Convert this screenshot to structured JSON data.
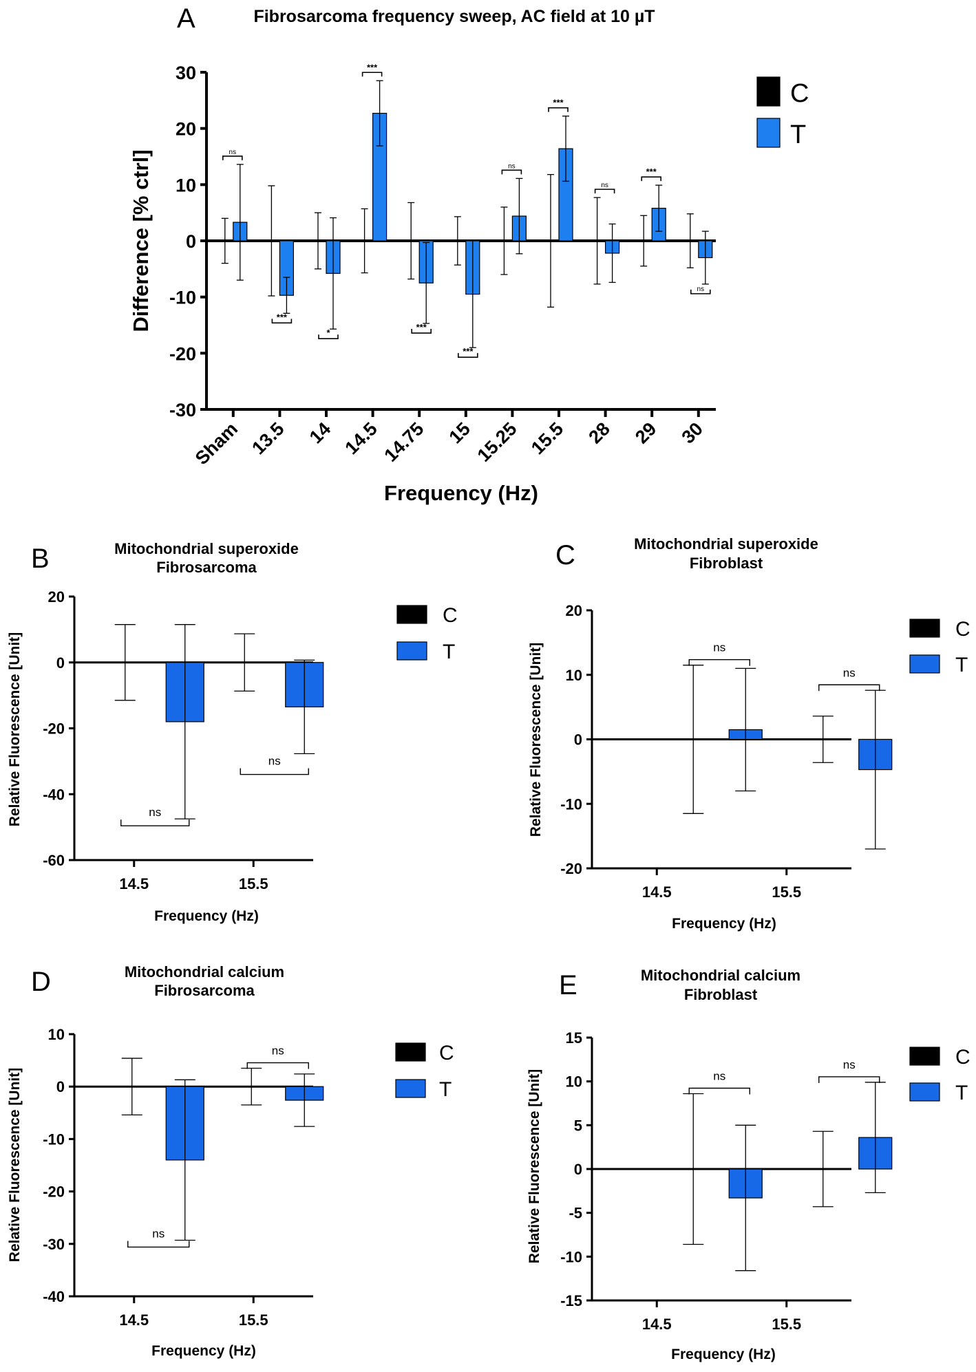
{
  "colors": {
    "control": "#000000",
    "treated": "#1769e8",
    "treated_A": "#1e7ff0",
    "axis": "#000000"
  },
  "chart_data": [
    {
      "panel": "A",
      "type": "bar",
      "title": "Fibrosarcoma frequency sweep, AC field at 10 µT",
      "xlabel": "Frequency (Hz)",
      "ylabel": "Difference [% ctrl]",
      "ylim": [
        -30,
        30
      ],
      "yticks": [
        30,
        20,
        10,
        0,
        -10,
        -20,
        -30
      ],
      "categories": [
        "Sham",
        "13.5",
        "14",
        "14.5",
        "14.75",
        "15",
        "15.25",
        "15.5",
        "28",
        "29",
        "30"
      ],
      "legend": [
        "C",
        "T"
      ],
      "series": [
        {
          "name": "C",
          "values": [
            0,
            0,
            0,
            0,
            0,
            0,
            0,
            0,
            0,
            0,
            0
          ],
          "errors": [
            4,
            9.8,
            5,
            5.7,
            6.8,
            4.3,
            6,
            11.8,
            7.7,
            4.5,
            4.8
          ]
        },
        {
          "name": "T",
          "values": [
            3.3,
            -9.7,
            -5.8,
            22.7,
            -7.5,
            -9.5,
            4.4,
            16.4,
            -2.2,
            5.8,
            -3
          ],
          "errors": [
            10.3,
            3.2,
            9.9,
            5.8,
            7.2,
            9.5,
            6.7,
            5.8,
            5.2,
            4.1,
            4.7
          ]
        }
      ],
      "significance": [
        "ns",
        "***",
        "*",
        "***",
        "***",
        "***",
        "ns",
        "***",
        "ns",
        "***",
        "ns"
      ]
    },
    {
      "panel": "B",
      "type": "bar",
      "title": [
        "Mitochondrial superoxide",
        "Fibrosarcoma"
      ],
      "xlabel": "Frequency (Hz)",
      "ylabel": "Relative Fluorescence [Unit]",
      "ylim": [
        -60,
        20
      ],
      "yticks": [
        20,
        0,
        -20,
        -40,
        -60
      ],
      "categories": [
        "14.5",
        "15.5"
      ],
      "legend": [
        "C",
        "T"
      ],
      "series": [
        {
          "name": "C",
          "values": [
            0,
            0
          ],
          "errors": [
            11.5,
            8.7
          ]
        },
        {
          "name": "T",
          "values": [
            -18,
            -13.5
          ],
          "errors": [
            29.5,
            14.2
          ]
        }
      ],
      "significance": [
        "ns",
        "ns"
      ]
    },
    {
      "panel": "C",
      "type": "bar",
      "title": [
        "Mitochondrial superoxide",
        "Fibroblast"
      ],
      "xlabel": "Frequency (Hz)",
      "ylabel": "Relative Fluorescence [Unit]",
      "ylim": [
        -20,
        20
      ],
      "yticks": [
        20,
        10,
        0,
        -10,
        -20
      ],
      "categories": [
        "14.5",
        "15.5"
      ],
      "legend": [
        "C",
        "T"
      ],
      "series": [
        {
          "name": "C",
          "values": [
            0,
            0
          ],
          "errors": [
            11.5,
            3.6
          ]
        },
        {
          "name": "T",
          "values": [
            1.5,
            -4.7
          ],
          "errors": [
            9.5,
            12.3
          ]
        }
      ],
      "significance": [
        "ns",
        "ns"
      ]
    },
    {
      "panel": "D",
      "type": "bar",
      "title": [
        "Mitochondrial calcium",
        "Fibrosarcoma"
      ],
      "xlabel": "Frequency (Hz)",
      "ylabel": "Relative Fluorescence [Unit]",
      "ylim": [
        -40,
        10
      ],
      "yticks": [
        10,
        0,
        -10,
        -20,
        -30,
        -40
      ],
      "categories": [
        "14.5",
        "15.5"
      ],
      "legend": [
        "C",
        "T"
      ],
      "series": [
        {
          "name": "C",
          "values": [
            0,
            0
          ],
          "errors": [
            5.4,
            3.5
          ]
        },
        {
          "name": "T",
          "values": [
            -14,
            -2.6
          ],
          "errors": [
            15.3,
            5
          ]
        }
      ],
      "significance": [
        "ns",
        "ns"
      ]
    },
    {
      "panel": "E",
      "type": "bar",
      "title": [
        "Mitochondrial calcium",
        "Fibroblast"
      ],
      "xlabel": "Frequency (Hz)",
      "ylabel": "Relative Fluorescence [Unit]",
      "ylim": [
        -15,
        15
      ],
      "yticks": [
        15,
        10,
        5,
        0,
        -5,
        -10,
        -15
      ],
      "categories": [
        "14.5",
        "15.5"
      ],
      "legend": [
        "C",
        "T"
      ],
      "series": [
        {
          "name": "C",
          "values": [
            0,
            0
          ],
          "errors": [
            8.6,
            4.3
          ]
        },
        {
          "name": "T",
          "values": [
            -3.3,
            3.6
          ],
          "errors": [
            8.3,
            6.3
          ]
        }
      ],
      "significance": [
        "ns",
        "ns"
      ]
    }
  ]
}
